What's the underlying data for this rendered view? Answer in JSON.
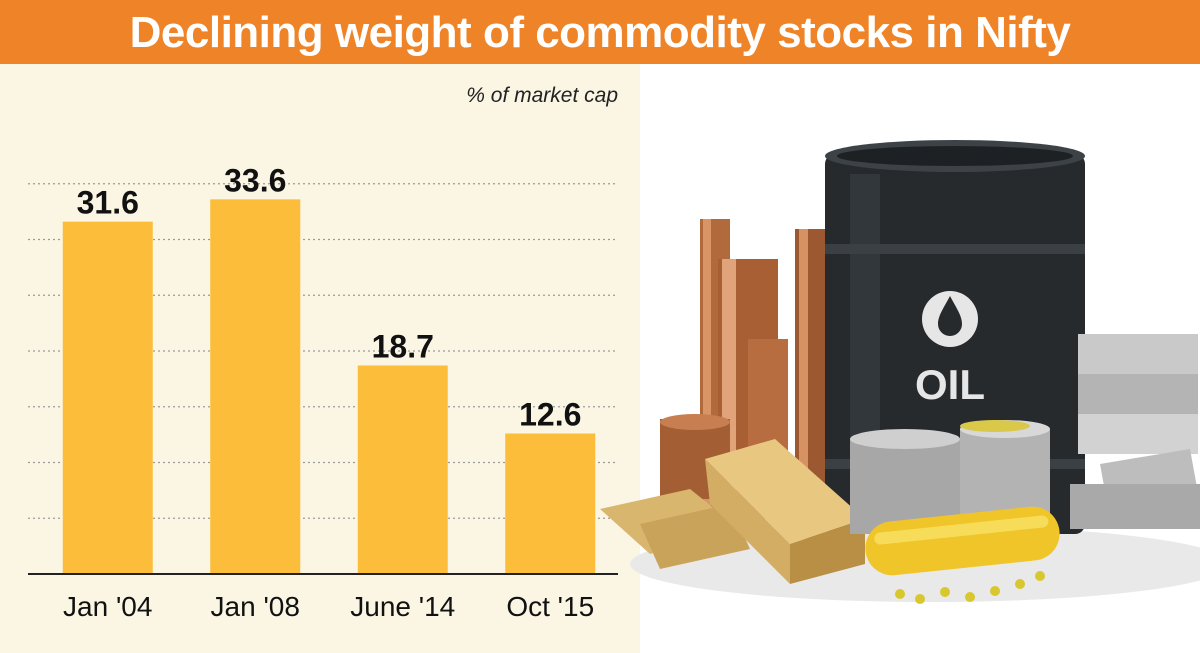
{
  "title": "Declining weight of commodity stocks in Nifty",
  "colors": {
    "banner": "#ee8427",
    "bar": "#fbbd3a",
    "chart_background": "#fbf5e4"
  },
  "chart_data": {
    "type": "bar",
    "title": "Declining weight of commodity stocks in Nifty",
    "unit_label": "% of market cap",
    "categories": [
      "Jan '04",
      "Jan '08",
      "June '14",
      "Oct '15"
    ],
    "values": [
      31.6,
      33.6,
      18.7,
      12.6
    ],
    "value_labels": [
      "31.6",
      "33.6",
      "18.7",
      "12.6"
    ],
    "ylim": [
      0,
      40
    ],
    "grid": true,
    "grid_style": "dotted horizontal",
    "legend": "none",
    "data_labels": "above bars"
  },
  "illustration": {
    "icon": "commodities-illustration",
    "barrel_label": "OIL"
  }
}
